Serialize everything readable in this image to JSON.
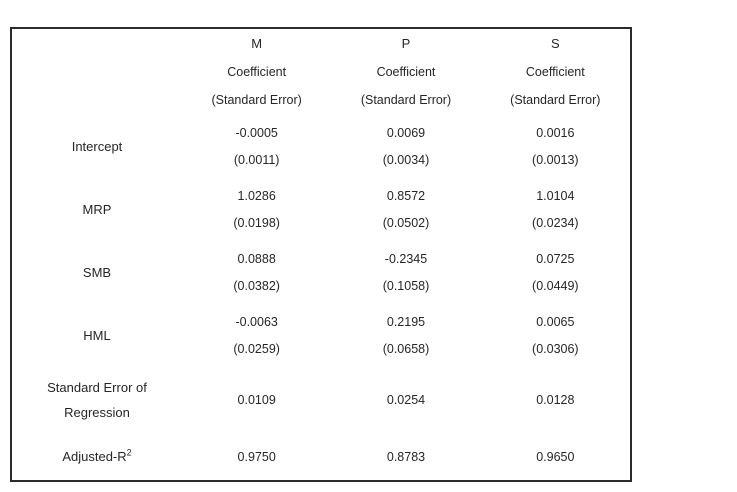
{
  "table": {
    "border_color": "#2b2b2b",
    "text_color": "#262626",
    "background_color": "#ffffff",
    "columns": [
      {
        "group": "M",
        "subtitle1": "Coefficient",
        "subtitle2": "(Standard Error)"
      },
      {
        "group": "P",
        "subtitle1": "Coefficient",
        "subtitle2": "(Standard Error)"
      },
      {
        "group": "S",
        "subtitle1": "Coefficient",
        "subtitle2": "(Standard Error)"
      }
    ],
    "rows": [
      {
        "label": "Intercept",
        "values": [
          {
            "coef": "-0.0005",
            "se": "(0.0011)"
          },
          {
            "coef": "0.0069",
            "se": "(0.0034)"
          },
          {
            "coef": "0.0016",
            "se": "(0.0013)"
          }
        ]
      },
      {
        "label": "MRP",
        "values": [
          {
            "coef": "1.0286",
            "se": "(0.0198)"
          },
          {
            "coef": "0.8572",
            "se": "(0.0502)"
          },
          {
            "coef": "1.0104",
            "se": "(0.0234)"
          }
        ]
      },
      {
        "label": "SMB",
        "values": [
          {
            "coef": "0.0888",
            "se": "(0.0382)"
          },
          {
            "coef": "-0.2345",
            "se": "(0.1058)"
          },
          {
            "coef": "0.0725",
            "se": "(0.0449)"
          }
        ]
      },
      {
        "label": "HML",
        "values": [
          {
            "coef": "-0.0063",
            "se": "(0.0259)"
          },
          {
            "coef": "0.2195",
            "se": "(0.0658)"
          },
          {
            "coef": "0.0065",
            "se": "(0.0306)"
          }
        ]
      }
    ],
    "summary_rows": [
      {
        "label": "Standard Error of Regression",
        "values": [
          "0.0109",
          "0.0254",
          "0.0128"
        ]
      },
      {
        "label_base": "Adjusted-R",
        "label_sup": "2",
        "values": [
          "0.9750",
          "0.8783",
          "0.9650"
        ]
      }
    ]
  }
}
